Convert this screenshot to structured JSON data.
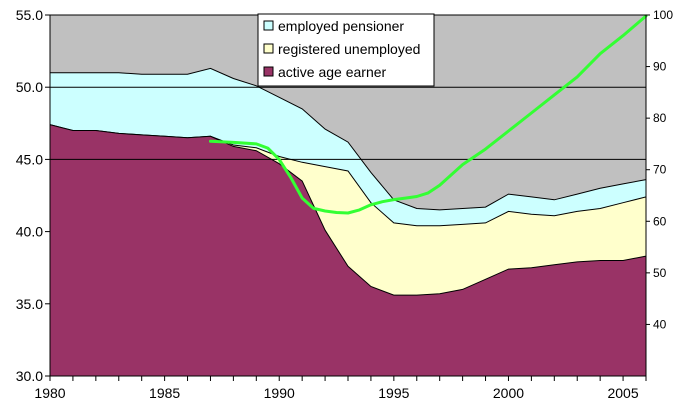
{
  "chart_data": {
    "type": "area",
    "title": "",
    "xlabel": "",
    "ylabel": "",
    "x": [
      1980,
      1981,
      1982,
      1983,
      1984,
      1985,
      1986,
      1987,
      1988,
      1989,
      1990,
      1991,
      1992,
      1993,
      1994,
      1995,
      1996,
      1997,
      1998,
      1999,
      2000,
      2001,
      2002,
      2003,
      2004,
      2005,
      2006
    ],
    "x_ticks": [
      "1980",
      "1985",
      "1990",
      "1995",
      "2000",
      "2005"
    ],
    "x_tick_values": [
      1980,
      1985,
      1990,
      1995,
      2000,
      2005
    ],
    "xlim": [
      1980,
      2006
    ],
    "ylim": [
      30,
      55
    ],
    "y_ticks": [
      "30.0",
      "35.0",
      "40.0",
      "45.0",
      "50.0",
      "55.0"
    ],
    "y_tick_values": [
      30,
      35,
      40,
      45,
      50,
      55
    ],
    "y2lim": [
      30,
      100
    ],
    "y2_ticks": [
      "40",
      "50",
      "60",
      "70",
      "80",
      "90",
      "100"
    ],
    "y2_tick_values": [
      40,
      50,
      60,
      70,
      80,
      90,
      100
    ],
    "horizontal_gridlines": [
      45,
      50
    ],
    "background_color": "#c0c0c0",
    "legend_position": "top-center",
    "series": [
      {
        "name": "employed pensioner",
        "color": "#ccffff",
        "values": [
          51.0,
          51.0,
          51.0,
          51.0,
          50.9,
          50.9,
          50.9,
          51.3,
          50.6,
          50.1,
          49.3,
          48.5,
          47.1,
          46.2,
          44.1,
          42.2,
          41.6,
          41.5,
          41.6,
          41.7,
          42.6,
          42.4,
          42.2,
          42.6,
          43.0,
          43.3,
          43.6
        ]
      },
      {
        "name": "registered unemployed",
        "color": "#ffffcc",
        "values": [
          47.4,
          47.0,
          47.0,
          46.8,
          46.7,
          46.6,
          46.5,
          46.6,
          46.0,
          45.8,
          45.2,
          44.8,
          44.5,
          44.2,
          42.0,
          40.6,
          40.4,
          40.4,
          40.5,
          40.6,
          41.4,
          41.2,
          41.1,
          41.4,
          41.6,
          42.0,
          42.4
        ]
      },
      {
        "name": "active age earner",
        "color": "#993366",
        "values": [
          47.4,
          47.0,
          47.0,
          46.8,
          46.7,
          46.6,
          46.5,
          46.6,
          45.9,
          45.6,
          44.7,
          43.5,
          40.1,
          37.6,
          36.2,
          35.6,
          35.6,
          35.7,
          36.0,
          36.7,
          37.4,
          37.5,
          37.7,
          37.9,
          38.0,
          38.0,
          38.3
        ]
      }
    ],
    "line_series": {
      "axis": "right",
      "color": "#33ff33",
      "x": [
        1987,
        1988,
        1989,
        1989.5,
        1990,
        1990.5,
        1991,
        1991.5,
        1992,
        1992.5,
        1993,
        1993.5,
        1994,
        1994.5,
        1995,
        1995.5,
        1996,
        1996.5,
        1997,
        1998,
        1999,
        2000,
        2001,
        2002,
        2003,
        2004,
        2005,
        2006
      ],
      "values": [
        75.5,
        75.3,
        75.0,
        74.2,
        72.0,
        68.5,
        64.5,
        62.5,
        62.0,
        61.7,
        61.6,
        62.2,
        63.2,
        63.8,
        64.2,
        64.5,
        64.8,
        65.5,
        67.0,
        71.0,
        74.0,
        77.5,
        81.0,
        84.5,
        88.0,
        92.5,
        96.0,
        99.8
      ]
    }
  }
}
